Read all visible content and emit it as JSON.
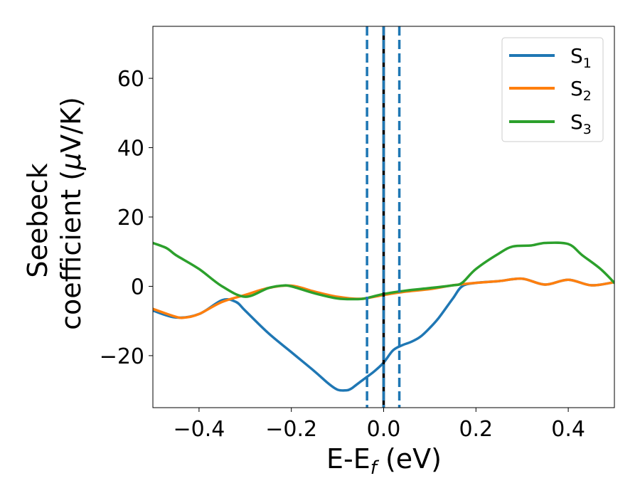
{
  "chart_data": {
    "type": "line",
    "xlabel": {
      "main": "E-E",
      "sub": "f",
      "suffix": " (eV)"
    },
    "ylabel": {
      "line1": "Seebeck",
      "line2_pre": "coefficient  (",
      "line2_mu": "μ",
      "line2_post": "V/K)"
    },
    "xlim": [
      -0.5,
      0.5
    ],
    "ylim": [
      -35,
      75
    ],
    "xticks": [
      -0.4,
      -0.2,
      0.0,
      0.2,
      0.4
    ],
    "xtick_labels": [
      "−0.4",
      "−0.2",
      "0.0",
      "0.2",
      "0.4"
    ],
    "yticks": [
      -20,
      0,
      20,
      40,
      60
    ],
    "ytick_labels": [
      "−20",
      "0",
      "20",
      "40",
      "60"
    ],
    "grid": false,
    "legend_position": "top-right",
    "vlines": [
      {
        "x": 0.0,
        "style": "solid",
        "color": "#000000"
      },
      {
        "x": -0.036,
        "style": "dashed",
        "color": "#1f77b4"
      },
      {
        "x": 0.0,
        "style": "dashed",
        "color": "#1f77b4"
      },
      {
        "x": 0.034,
        "style": "dashed",
        "color": "#1f77b4"
      }
    ],
    "series": [
      {
        "name": "S",
        "sub": "1",
        "color": "#1f77b4",
        "x": [
          -0.5,
          -0.45,
          -0.4,
          -0.35,
          -0.32,
          -0.3,
          -0.25,
          -0.2,
          -0.15,
          -0.12,
          -0.1,
          -0.08,
          -0.07,
          -0.06,
          -0.04,
          -0.02,
          0.0,
          0.02,
          0.04,
          0.06,
          0.08,
          0.1,
          0.12,
          0.15,
          0.17,
          0.2,
          0.25,
          0.3,
          0.35,
          0.4,
          0.45,
          0.5
        ],
        "y": [
          -7,
          -9,
          -8,
          -4,
          -4.5,
          -7,
          -13.5,
          -19,
          -24.5,
          -28,
          -29.8,
          -30,
          -29.5,
          -28.5,
          -26.5,
          -24.5,
          -22,
          -18.5,
          -17,
          -16,
          -14.5,
          -12,
          -9,
          -3.5,
          0,
          1,
          1.5,
          2.2,
          0.5,
          1.9,
          0.3,
          1.2
        ]
      },
      {
        "name": "S",
        "sub": "2",
        "color": "#ff7f0e",
        "x": [
          -0.5,
          -0.45,
          -0.43,
          -0.4,
          -0.35,
          -0.3,
          -0.25,
          -0.2,
          -0.15,
          -0.1,
          -0.05,
          0.0,
          0.05,
          0.1,
          0.15,
          0.2,
          0.25,
          0.3,
          0.35,
          0.4,
          0.45,
          0.5
        ],
        "y": [
          -6.5,
          -8.8,
          -9,
          -8,
          -4.5,
          -2.5,
          -0.5,
          0.2,
          -1.5,
          -3,
          -3.6,
          -2.5,
          -1.5,
          -0.8,
          0.3,
          1,
          1.5,
          2.2,
          0.5,
          1.9,
          0.3,
          1.2
        ]
      },
      {
        "name": "S",
        "sub": "3",
        "color": "#2ca02c",
        "x": [
          -0.5,
          -0.47,
          -0.45,
          -0.4,
          -0.35,
          -0.3,
          -0.25,
          -0.22,
          -0.2,
          -0.15,
          -0.1,
          -0.06,
          -0.04,
          0.0,
          0.05,
          0.1,
          0.15,
          0.17,
          0.2,
          0.25,
          0.28,
          0.32,
          0.35,
          0.4,
          0.43,
          0.47,
          0.5
        ],
        "y": [
          12.5,
          11,
          9,
          5,
          0,
          -3,
          -0.5,
          0.2,
          0,
          -2,
          -3.5,
          -3.7,
          -3.5,
          -2.2,
          -1.2,
          -0.5,
          0.3,
          1,
          5,
          9.5,
          11.5,
          11.8,
          12.5,
          12.2,
          9,
          5,
          1
        ]
      }
    ]
  }
}
